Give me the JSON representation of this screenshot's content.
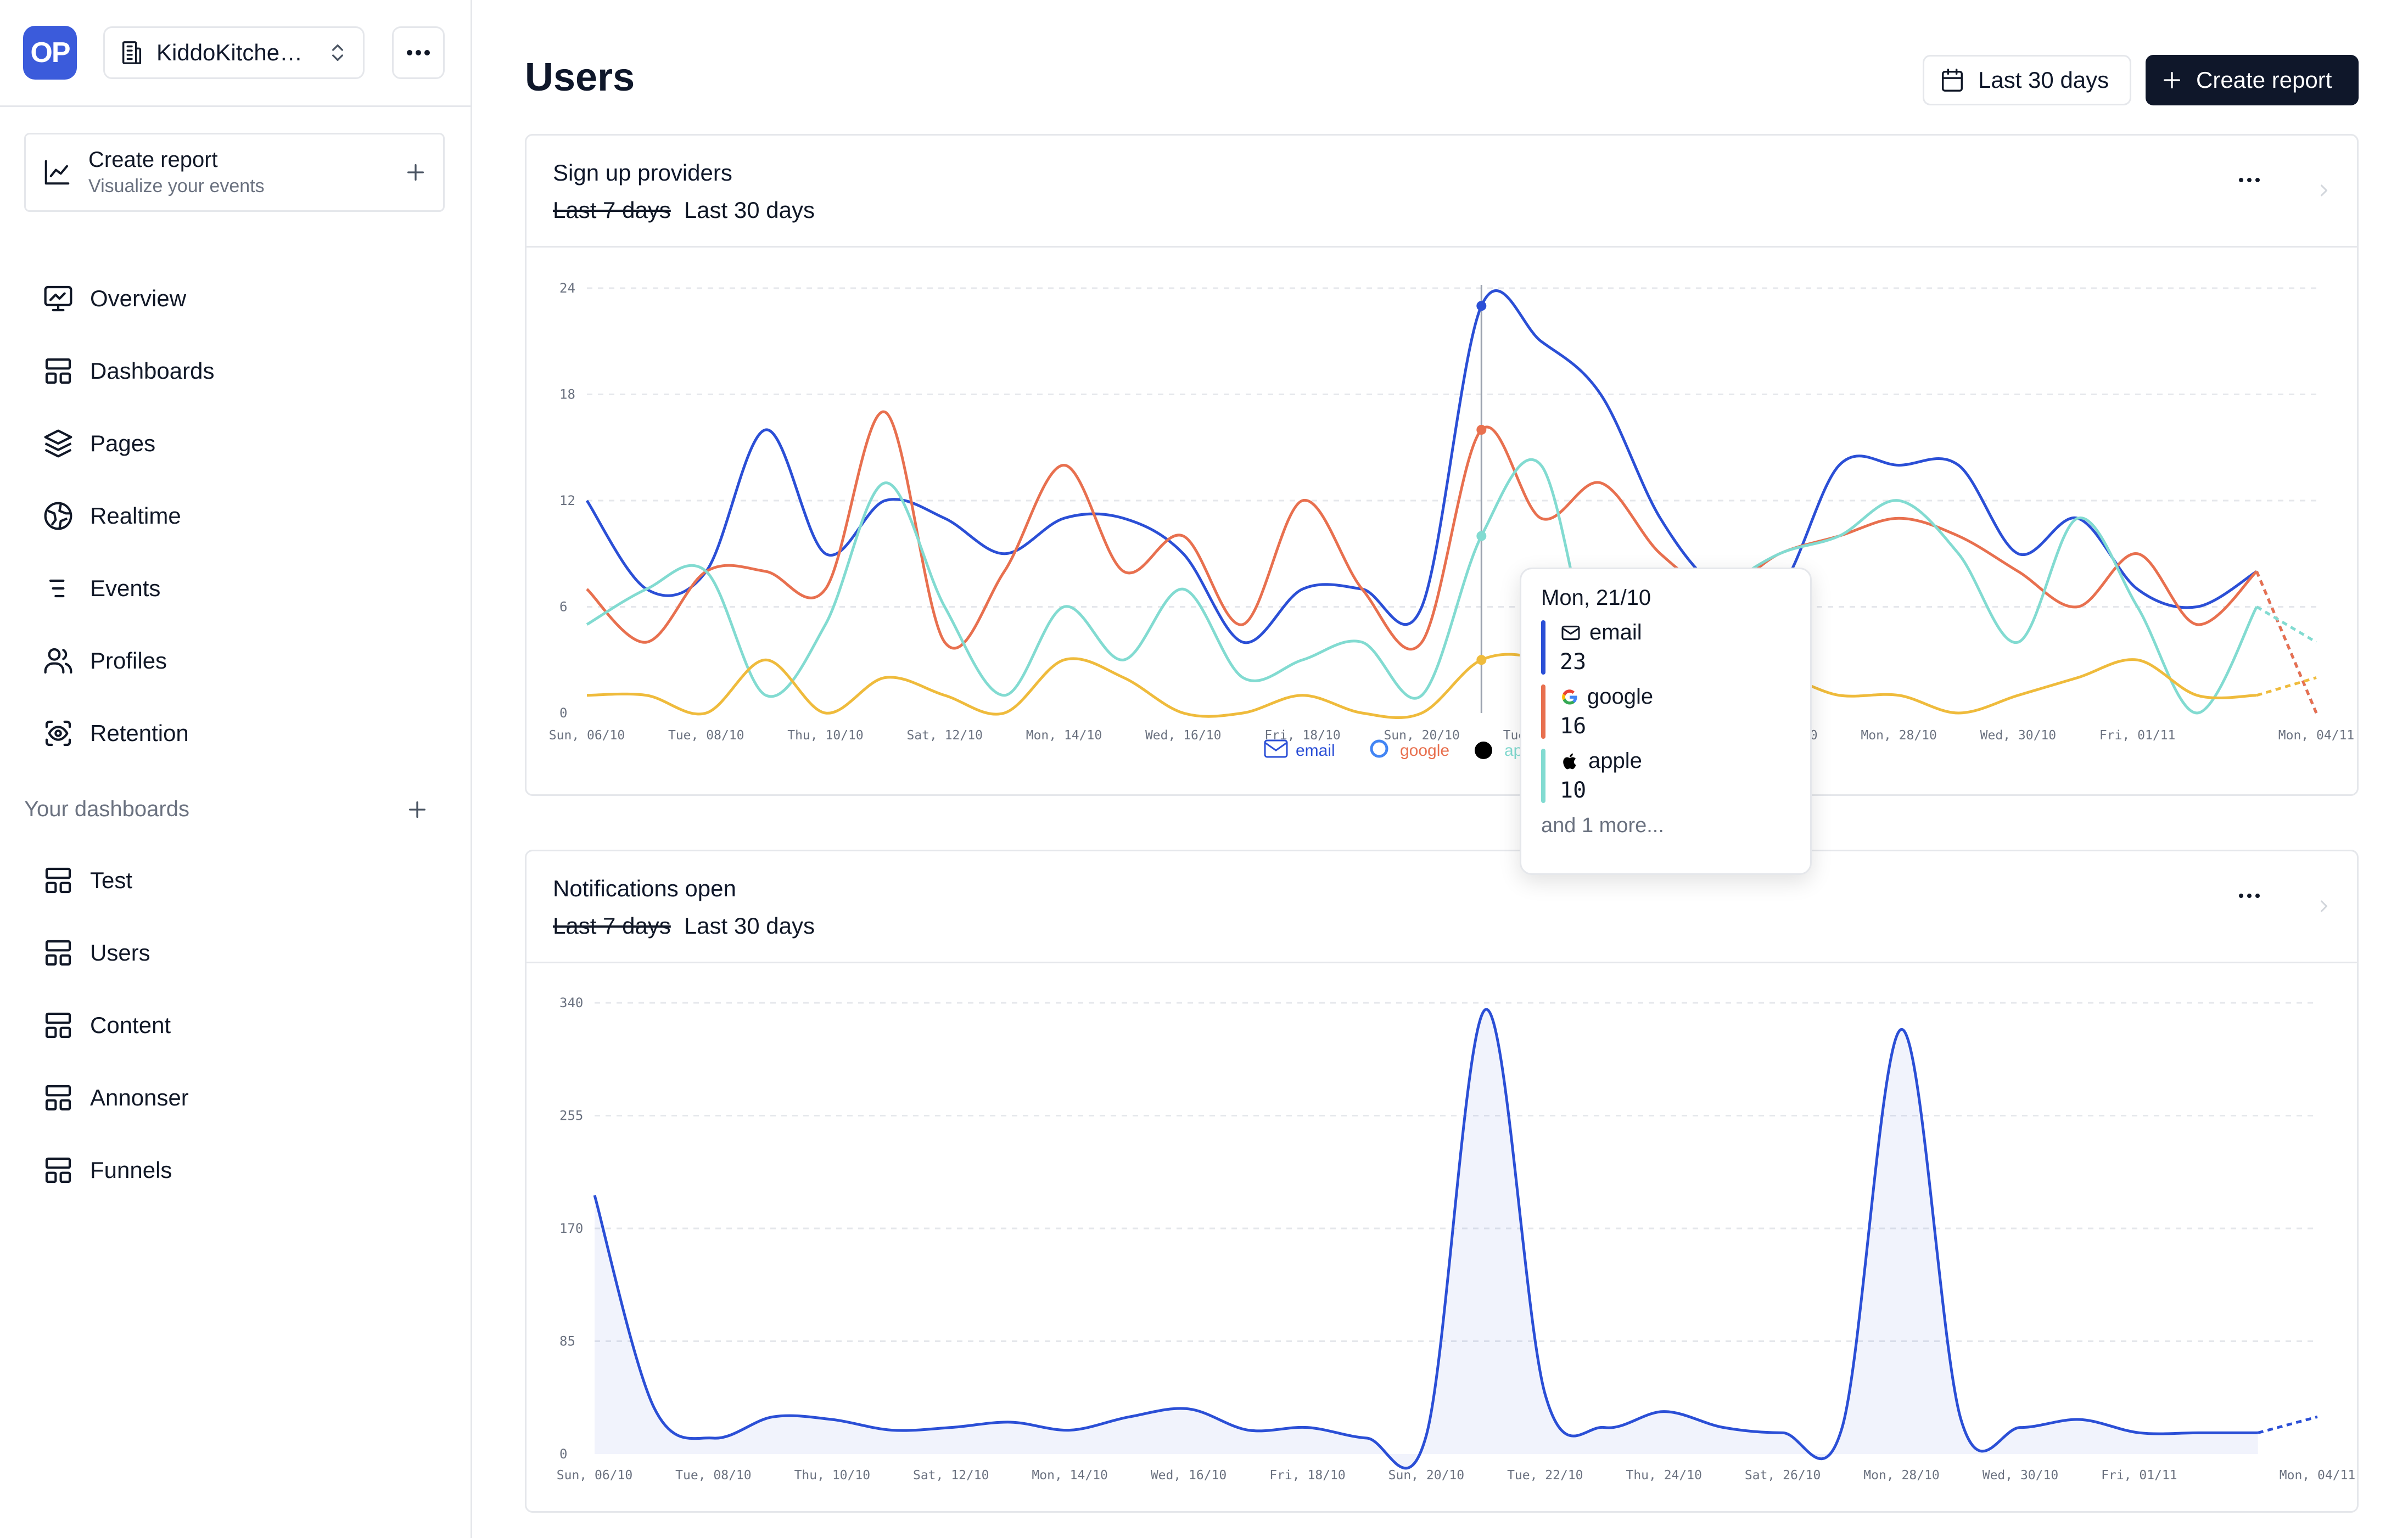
{
  "app": {
    "logo_text": "OP",
    "project_name": "KiddoKitche…"
  },
  "sidebar": {
    "create_report": {
      "title": "Create report",
      "subtitle": "Visualize your events"
    },
    "nav": [
      {
        "label": "Overview",
        "icon": "monitor-chart-icon"
      },
      {
        "label": "Dashboards",
        "icon": "layout-icon"
      },
      {
        "label": "Pages",
        "icon": "layers-icon"
      },
      {
        "label": "Realtime",
        "icon": "globe-icon"
      },
      {
        "label": "Events",
        "icon": "list-icon"
      },
      {
        "label": "Profiles",
        "icon": "users-icon"
      },
      {
        "label": "Retention",
        "icon": "scan-eye-icon"
      }
    ],
    "dashboards_label": "Your dashboards",
    "dashboards": [
      {
        "label": "Test"
      },
      {
        "label": "Users"
      },
      {
        "label": "Content"
      },
      {
        "label": "Annonser"
      },
      {
        "label": "Funnels"
      }
    ]
  },
  "header": {
    "title": "Users",
    "date_range": "Last 30 days",
    "create_report": "Create report"
  },
  "colors": {
    "email": "#2b4fd6",
    "google": "#e8704f",
    "apple": "#82dbd1",
    "other": "#efbb3c",
    "accent": "#0f172a"
  },
  "cards": [
    {
      "title": "Sign up providers",
      "range_old": "Last 7 days",
      "range_new": "Last 30 days"
    },
    {
      "title": "Notifications open",
      "range_old": "Last 7 days",
      "range_new": "Last 30 days"
    }
  ],
  "tooltip": {
    "date": "Mon, 21/10",
    "rows": [
      {
        "name": "email",
        "value": "23",
        "icon": "mail-icon"
      },
      {
        "name": "google",
        "value": "16",
        "icon": "google-icon"
      },
      {
        "name": "apple",
        "value": "10",
        "icon": "apple-icon"
      }
    ],
    "more": "and 1 more..."
  },
  "chart_data": [
    {
      "type": "line",
      "title": "Sign up providers",
      "x": [
        "Sun, 06/10",
        "Mon, 07/10",
        "Tue, 08/10",
        "Wed, 09/10",
        "Thu, 10/10",
        "Fri, 11/10",
        "Sat, 12/10",
        "Sun, 13/10",
        "Mon, 14/10",
        "Tue, 15/10",
        "Wed, 16/10",
        "Thu, 17/10",
        "Fri, 18/10",
        "Sat, 19/10",
        "Sun, 20/10",
        "Mon, 21/10",
        "Tue, 22/10",
        "Wed, 23/10",
        "Thu, 24/10",
        "Fri, 25/10",
        "Sat, 26/10",
        "Sun, 27/10",
        "Mon, 28/10",
        "Tue, 29/10",
        "Wed, 30/10",
        "Thu, 31/10",
        "Fri, 01/11",
        "Sat, 02/11",
        "Sun, 03/11",
        "Mon, 04/11"
      ],
      "x_tick_labels": [
        "Sun, 06/10",
        "Tue, 08/10",
        "Thu, 10/10",
        "Sat, 12/10",
        "Mon, 14/10",
        "Wed, 16/10",
        "Fri, 18/10",
        "Sun, 20/10",
        "Tue, 22/10",
        "Thu, 24/10",
        "Sat, 26/10",
        "Mon, 28/10",
        "Wed, 30/10",
        "Fri, 01/11",
        "Mon, 04/11"
      ],
      "yticks": [
        0,
        6,
        12,
        18,
        24
      ],
      "ylim": [
        0,
        24
      ],
      "grid": true,
      "legend_placement": "bottom",
      "series": [
        {
          "name": "email",
          "values": [
            12,
            7,
            8,
            16,
            9,
            12,
            11,
            9,
            11,
            11,
            9,
            4,
            7,
            7,
            6,
            23,
            21,
            18,
            11,
            7,
            7,
            14,
            14,
            14,
            9,
            11,
            7,
            6,
            8,
            0
          ]
        },
        {
          "name": "google",
          "values": [
            7,
            4,
            8,
            8,
            7,
            17,
            4,
            8,
            14,
            8,
            10,
            5,
            12,
            7,
            4,
            16,
            11,
            13,
            9,
            7,
            9,
            10,
            11,
            10,
            8,
            6,
            9,
            5,
            8,
            0
          ]
        },
        {
          "name": "apple",
          "values": [
            5,
            7,
            8,
            1,
            5,
            13,
            6,
            1,
            6,
            3,
            7,
            2,
            3,
            4,
            1,
            10,
            14,
            2,
            5,
            7,
            9,
            10,
            12,
            9,
            4,
            11,
            6,
            0,
            6,
            4
          ]
        },
        {
          "name": "",
          "values": [
            1,
            1,
            0,
            3,
            0,
            2,
            1,
            0,
            3,
            2,
            0,
            0,
            1,
            0,
            0,
            3,
            3,
            1,
            1,
            1,
            2,
            1,
            1,
            0,
            1,
            2,
            3,
            1,
            1,
            2
          ]
        }
      ]
    },
    {
      "type": "area",
      "title": "Notifications open",
      "x": [
        "Sun, 06/10",
        "Mon, 07/10",
        "Tue, 08/10",
        "Wed, 09/10",
        "Thu, 10/10",
        "Fri, 11/10",
        "Sat, 12/10",
        "Sun, 13/10",
        "Mon, 14/10",
        "Tue, 15/10",
        "Wed, 16/10",
        "Thu, 17/10",
        "Fri, 18/10",
        "Sat, 19/10",
        "Sun, 20/10",
        "Mon, 21/10",
        "Tue, 22/10",
        "Wed, 23/10",
        "Thu, 24/10",
        "Fri, 25/10",
        "Sat, 26/10",
        "Sun, 27/10",
        "Mon, 28/10",
        "Tue, 29/10",
        "Wed, 30/10",
        "Thu, 31/10",
        "Fri, 01/11",
        "Sat, 02/11",
        "Sun, 03/11",
        "Mon, 04/11"
      ],
      "x_tick_labels": [
        "Sun, 06/10",
        "Tue, 08/10",
        "Thu, 10/10",
        "Sat, 12/10",
        "Mon, 14/10",
        "Wed, 16/10",
        "Fri, 18/10",
        "Sun, 20/10",
        "Tue, 22/10",
        "Thu, 24/10",
        "Sat, 26/10",
        "Mon, 28/10",
        "Wed, 30/10",
        "Fri, 01/11",
        "Mon, 04/11"
      ],
      "yticks": [
        0,
        85,
        170,
        255,
        340
      ],
      "ylim": [
        0,
        340
      ],
      "grid": true,
      "series": [
        {
          "name": "",
          "values": [
            195,
            35,
            12,
            28,
            26,
            18,
            20,
            24,
            18,
            28,
            34,
            18,
            20,
            12,
            14,
            335,
            45,
            20,
            32,
            20,
            16,
            20,
            320,
            26,
            20,
            26,
            16,
            16,
            16,
            28
          ]
        }
      ]
    }
  ]
}
